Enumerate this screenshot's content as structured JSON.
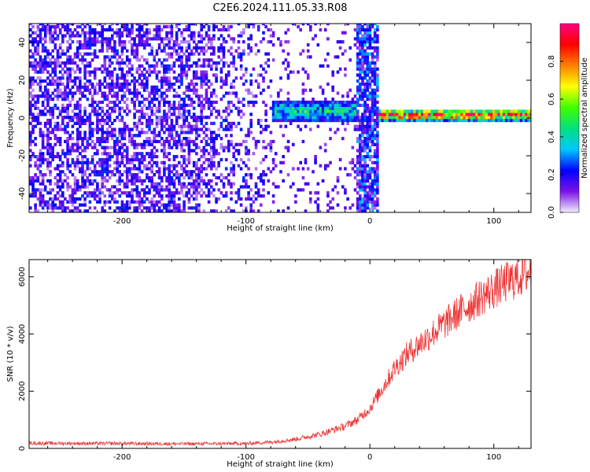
{
  "title": "C2E6.2024.111.05.33.R08",
  "chart_data": [
    {
      "type": "heatmap",
      "xlabel": "Height of straight line (km)",
      "ylabel": "Frequency (Hz)",
      "xlim": [
        -275,
        130
      ],
      "ylim": [
        -50,
        50
      ],
      "xticks": [
        -200,
        -100,
        0,
        100
      ],
      "xtick_labels": [
        "-200",
        "-100",
        "0",
        "100"
      ],
      "yticks": [
        -40,
        -20,
        0,
        20,
        40
      ],
      "ytick_labels": [
        "-40",
        "-20",
        "0",
        "20",
        "40"
      ],
      "colorbar": {
        "label": "Normalized spectral amplitude",
        "range": [
          0,
          1
        ],
        "ticks": [
          0.0,
          0.2,
          0.4,
          0.6,
          0.8
        ],
        "tick_labels": [
          "0.0",
          "0.2",
          "0.4",
          "0.6",
          "0.8"
        ],
        "colors": [
          "#f2eefc",
          "#7a12e8",
          "#0000ff",
          "#00c8ff",
          "#00e080",
          "#40ff00",
          "#ffff00",
          "#ff8000",
          "#ff0000",
          "#ff0080"
        ]
      },
      "regions": [
        {
          "x_range": [
            -275,
            -80
          ],
          "description": "broadband noise",
          "amplitude": 0.15
        },
        {
          "x_range": [
            -80,
            -12
          ],
          "freq_center": 3,
          "freq_halfwidth": 6,
          "amplitude": 0.4
        },
        {
          "x_range": [
            -12,
            7
          ],
          "description": "broadband burst",
          "amplitude": 0.2
        },
        {
          "x_range": [
            7,
            130
          ],
          "freq_center": 1,
          "freq_halfwidth": 3,
          "amplitude": 0.8
        }
      ]
    },
    {
      "type": "line",
      "xlabel": "Height of straight line (km)",
      "ylabel": "SNR (10 * v/v)",
      "xlim": [
        -275,
        130
      ],
      "ylim": [
        0,
        6600
      ],
      "xticks": [
        -200,
        -100,
        0,
        100
      ],
      "xtick_labels": [
        "-200",
        "-100",
        "0",
        "100"
      ],
      "yticks": [
        0,
        2000,
        4000,
        6000
      ],
      "ytick_labels": [
        "0",
        "2000",
        "4000",
        "6000"
      ],
      "series": [
        {
          "color": "#ee3333",
          "x": [
            -275,
            -200,
            -150,
            -100,
            -80,
            -60,
            -40,
            -20,
            -10,
            0,
            10,
            20,
            30,
            50,
            70,
            90,
            110,
            130
          ],
          "y": [
            180,
            170,
            160,
            170,
            220,
            320,
            500,
            780,
            1000,
            1400,
            2100,
            2800,
            3300,
            4000,
            4700,
            5300,
            5800,
            6200
          ]
        }
      ]
    }
  ]
}
